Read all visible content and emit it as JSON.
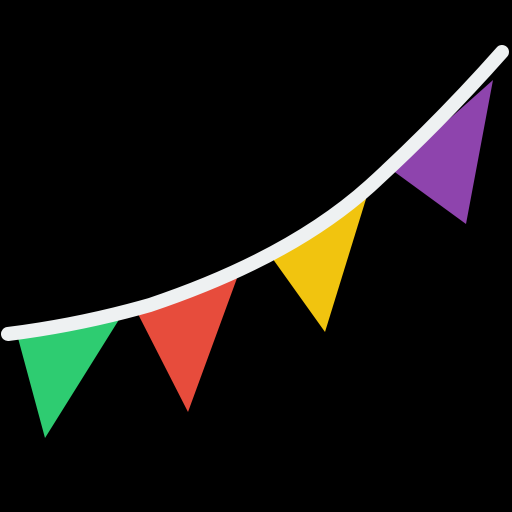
{
  "illustration": {
    "icon": "bunting-garland-icon",
    "background_color": "#000000",
    "string_color": "#EEF1F2",
    "flags": [
      {
        "name": "green-flag",
        "color": "#2ECC71"
      },
      {
        "name": "red-flag",
        "color": "#E74C3C"
      },
      {
        "name": "yellow-flag",
        "color": "#F1C40F"
      },
      {
        "name": "purple-flag",
        "color": "#8E44AD"
      }
    ]
  }
}
